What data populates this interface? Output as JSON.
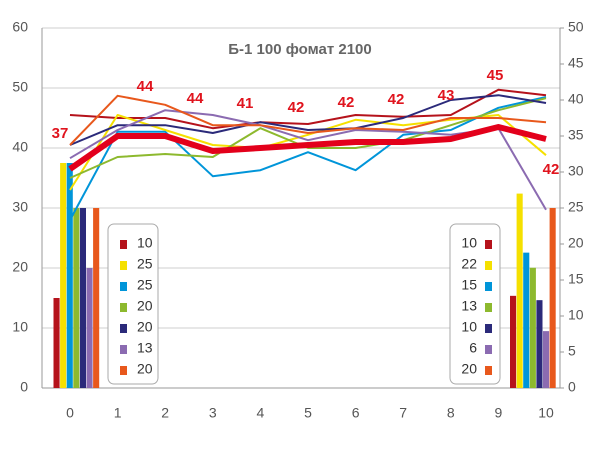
{
  "chart_data": {
    "type": "line",
    "title": "Б-1 100 фомат 2100",
    "categories": [
      "0",
      "1",
      "2",
      "3",
      "4",
      "5",
      "6",
      "7",
      "8",
      "9",
      "10"
    ],
    "ylim": [
      0,
      60
    ],
    "yticks": [
      0,
      10,
      20,
      30,
      40,
      50,
      60
    ],
    "y2lim": [
      0,
      50
    ],
    "y2ticks": [
      0,
      5,
      10,
      15,
      20,
      25,
      30,
      35,
      40,
      45,
      50
    ],
    "grid": true,
    "series": [
      {
        "color": "#b5121b",
        "values": [
          45.5,
          45,
          45,
          43.3,
          44.3,
          44,
          45.5,
          45.2,
          45.5,
          49.7,
          48.8
        ]
      },
      {
        "color": "#f5e000",
        "values": [
          33,
          45.5,
          43,
          40.5,
          40,
          42.2,
          44.7,
          43.8,
          44.7,
          45.5,
          38.8
        ]
      },
      {
        "color": "#0095d9",
        "values": [
          28,
          42.7,
          42.7,
          35.3,
          36.3,
          39.3,
          36.3,
          42.2,
          43,
          46.7,
          48.5
        ]
      },
      {
        "color": "#8db92e",
        "values": [
          35,
          38.5,
          39,
          38.5,
          43.3,
          40,
          40,
          41.3,
          43.8,
          46.3,
          48.3
        ]
      },
      {
        "color": "#2b2a7a",
        "values": [
          40.5,
          43.8,
          43.8,
          42.5,
          44.3,
          43,
          43.3,
          45,
          48,
          48.8,
          47.5
        ]
      },
      {
        "color": "#8b6bb1",
        "values": [
          38.3,
          43,
          46.3,
          45.5,
          43.8,
          41.3,
          43,
          42.7,
          42.2,
          43.3,
          29.7
        ]
      },
      {
        "color": "#e8581c",
        "values": [
          40.5,
          48.7,
          47.2,
          43.8,
          43.8,
          42.5,
          43.3,
          43,
          45,
          45,
          44.3
        ]
      },
      {
        "color": "#e3001b",
        "thick": true,
        "values": [
          36.5,
          42,
          42,
          39.5,
          40,
          40.5,
          41,
          41,
          41.5,
          43.5,
          41.5
        ]
      }
    ],
    "annotations": [
      "37",
      "44",
      "44",
      "41",
      "42",
      "42",
      "42",
      "43",
      "45",
      "42"
    ],
    "bars_start": {
      "axis": "y",
      "values": [
        15,
        37.5,
        37.5,
        30,
        30,
        20,
        30
      ]
    },
    "bars_end": {
      "axis": "y2",
      "values": [
        12.8,
        27,
        18.8,
        16.7,
        12.2,
        7.9,
        25
      ]
    },
    "legend_left": [
      "10",
      "25",
      "25",
      "20",
      "20",
      "13",
      "20"
    ],
    "legend_right": [
      "10",
      "22",
      "15",
      "13",
      "10",
      "6",
      "20"
    ]
  }
}
